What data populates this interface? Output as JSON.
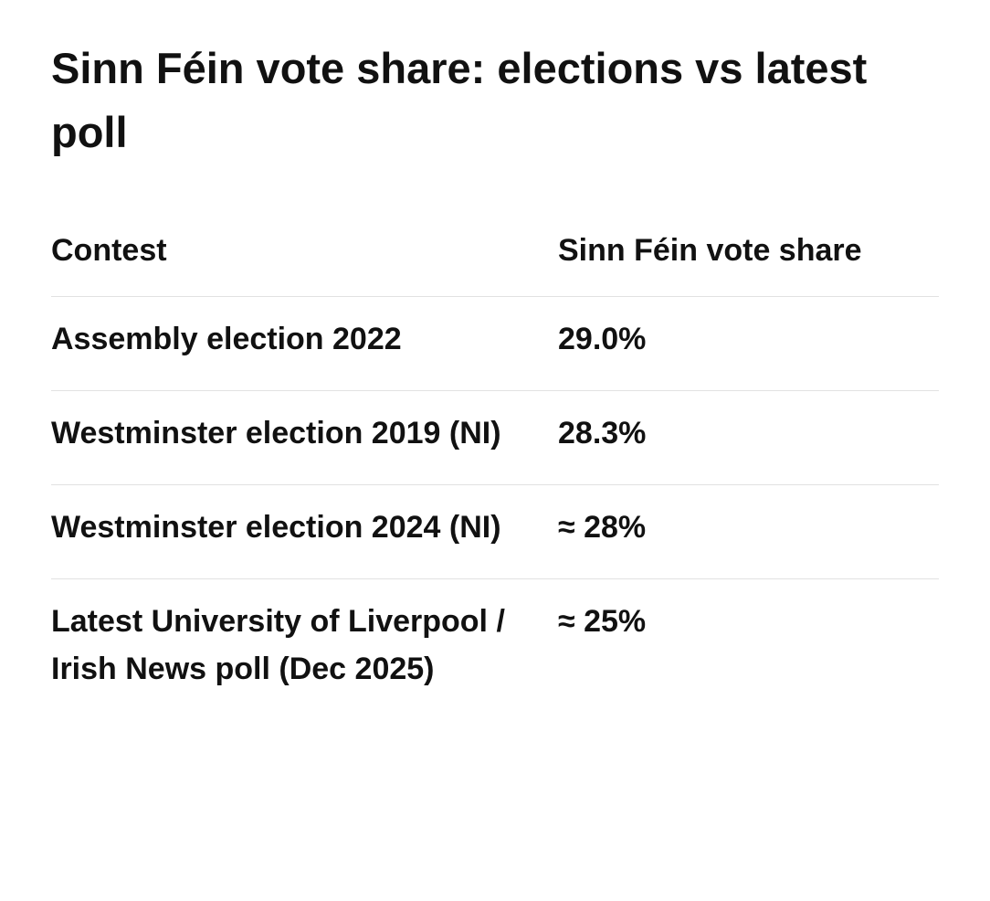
{
  "header": {
    "title": "Sinn Féin vote share: elections vs latest poll"
  },
  "table": {
    "columns": [
      "Contest",
      "Sinn Féin vote share"
    ],
    "rows": [
      [
        "Assembly election 2022",
        "29.0%"
      ],
      [
        "Westminster election 2019 (NI)",
        "28.3%"
      ],
      [
        "Westminster election 2024 (NI)",
        "≈ 28%"
      ],
      [
        "Latest University of Liverpool / Irish News poll (Dec 2025)",
        "≈ 25%"
      ]
    ]
  }
}
